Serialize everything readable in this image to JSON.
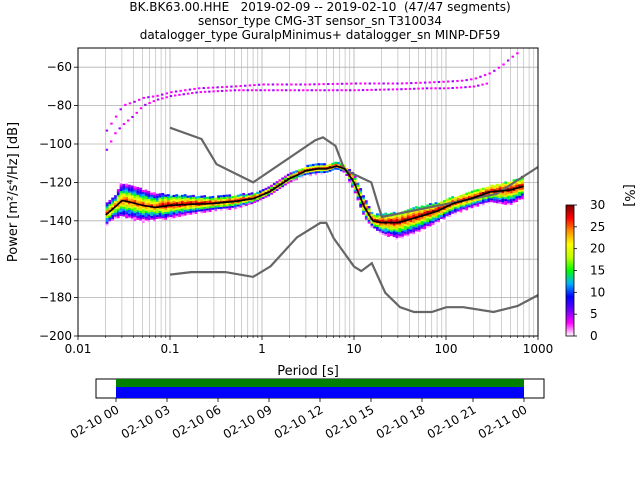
{
  "title_lines": [
    "BK.BK63.00.HHE   2019-02-09 -- 2019-02-10  (47/47 segments)",
    "sensor_type CMG-3T sensor_sn T310034",
    "datalogger_type GuralpMinimus+ datalogger_sn MINP-DF59"
  ],
  "chart_data": {
    "type": "heatmap",
    "title": "BK.BK63.00.HHE   2019-02-09 -- 2019-02-10  (47/47 segments)",
    "xlabel": "Period [s]",
    "ylabel": "Power [m²/s⁴/Hz] [dB]",
    "xscale": "log",
    "xlim": [
      0.01,
      1000
    ],
    "ylim": [
      -200,
      -50
    ],
    "xticks": [
      {
        "value": 0.01,
        "label": "0.01"
      },
      {
        "value": 0.1,
        "label": "0.1"
      },
      {
        "value": 1,
        "label": "1"
      },
      {
        "value": 10,
        "label": "10"
      },
      {
        "value": 100,
        "label": "100"
      },
      {
        "value": 1000,
        "label": "1000"
      }
    ],
    "yticks": [
      -60,
      -80,
      -100,
      -120,
      -140,
      -160,
      -180,
      -200
    ],
    "grid": true,
    "colorbar": {
      "label": "[%]",
      "range": [
        0,
        30
      ],
      "ticks": [
        0,
        5,
        10,
        15,
        20,
        25,
        30
      ],
      "colormap": [
        "#ffffff",
        "#ff00ff",
        "#6a00ff",
        "#0000ff",
        "#00b0ff",
        "#00ff00",
        "#c0ff00",
        "#ffff00",
        "#ff9000",
        "#ff0000",
        "#800000"
      ]
    },
    "nhnm": {
      "name": "NHNM",
      "color": "#666666",
      "x": [
        0.1,
        0.22,
        0.32,
        0.8,
        3.8,
        4.6,
        6.3,
        7.9,
        15.4,
        20,
        354.8,
        1000
      ],
      "y": [
        -91.5,
        -97.4,
        -110.5,
        -120,
        -98,
        -96.5,
        -101,
        -113.5,
        -120,
        -138,
        -126,
        -112
      ]
    },
    "nlnm": {
      "name": "NLNM",
      "color": "#666666",
      "x": [
        0.1,
        0.17,
        0.4,
        0.8,
        1.24,
        2.4,
        4.3,
        5,
        6,
        10,
        12,
        15.6,
        21.9,
        31.6,
        45,
        70,
        101,
        154,
        328,
        600,
        1000
      ],
      "y": [
        -168,
        -166.7,
        -166.7,
        -169.2,
        -163.7,
        -148.6,
        -141.1,
        -141.1,
        -149,
        -163.8,
        -166.2,
        -162.1,
        -177.5,
        -185,
        -187.5,
        -187.5,
        -185,
        -185,
        -187.5,
        -184.4,
        -178.7
      ]
    },
    "mean_psd": {
      "name": "mean",
      "color": "#000000",
      "x": [
        0.02,
        0.025,
        0.03,
        0.035,
        0.05,
        0.07,
        0.1,
        0.15,
        0.3,
        0.5,
        0.8,
        1.2,
        2,
        3,
        4,
        5,
        6.5,
        8,
        10,
        13,
        16,
        20,
        30,
        50,
        80,
        120,
        200,
        300,
        500,
        700
      ],
      "y": [
        -137,
        -133,
        -129.5,
        -130,
        -132,
        -133,
        -132,
        -131.5,
        -131,
        -130,
        -128.5,
        -125,
        -118,
        -114,
        -113,
        -113,
        -111.5,
        -113,
        -120,
        -133,
        -140,
        -141,
        -141,
        -138,
        -135,
        -131,
        -128,
        -125,
        -124,
        -122
      ]
    },
    "psd_distribution": {
      "description_of_band": "density of PSD curves around mean, color = % occurrence",
      "x": [
        0.02,
        0.025,
        0.03,
        0.035,
        0.05,
        0.07,
        0.1,
        0.15,
        0.3,
        0.5,
        0.8,
        1.2,
        2,
        3,
        4,
        5,
        6.5,
        8,
        10,
        13,
        16,
        20,
        30,
        50,
        80,
        120,
        200,
        300,
        500,
        700
      ],
      "upper": [
        -132,
        -128,
        -119,
        -121,
        -124,
        -126,
        -127,
        -127,
        -128,
        -127,
        -126,
        -123,
        -116,
        -112,
        -111,
        -111,
        -110,
        -112,
        -116,
        -128,
        -137,
        -137,
        -136,
        -133,
        -131,
        -128,
        -125,
        -122,
        -120,
        -117
      ],
      "lower": [
        -144,
        -140,
        -137,
        -139,
        -141,
        -140,
        -139,
        -137,
        -135,
        -134,
        -131,
        -127,
        -120,
        -117,
        -116,
        -116,
        -114,
        -116,
        -124,
        -138,
        -144,
        -148,
        -151,
        -147,
        -142,
        -138,
        -134,
        -132,
        -134,
        -128
      ]
    },
    "outlier_traces": {
      "description_of_band": "sparse magenta/purple traces at high power",
      "upper": {
        "x": [
          0.02,
          0.025,
          0.03,
          0.04,
          0.05,
          0.07,
          0.1,
          0.2,
          0.5,
          1,
          3,
          10,
          30,
          60,
          100,
          150,
          200,
          300,
          400,
          500,
          650
        ],
        "y": [
          -93,
          -86,
          -80,
          -78,
          -76,
          -75,
          -73,
          -71,
          -70,
          -69,
          -69,
          -68.5,
          -68.5,
          -68,
          -67.5,
          -67,
          -66,
          -63,
          -59,
          -55,
          -51
        ]
      },
      "lower": {
        "x": [
          0.02,
          0.025,
          0.03,
          0.04,
          0.05,
          0.07,
          0.1,
          0.2,
          0.5,
          1,
          3,
          10,
          30,
          60,
          100,
          150,
          200,
          300
        ],
        "y": [
          -103,
          -94,
          -90,
          -85,
          -80,
          -77,
          -75,
          -73,
          -72,
          -72,
          -72,
          -72,
          -71.5,
          -71,
          -71,
          -70.5,
          -70,
          -68
        ]
      }
    },
    "timeline": {
      "xticks": [
        "02-10 00",
        "02-10 03",
        "02-10 06",
        "02-10 09",
        "02-10 12",
        "02-10 15",
        "02-10 18",
        "02-10 21",
        "02-11 00"
      ],
      "bands": [
        {
          "name": "data",
          "color": "#0000ff"
        },
        {
          "name": "psd",
          "color": "#008000"
        }
      ]
    }
  }
}
